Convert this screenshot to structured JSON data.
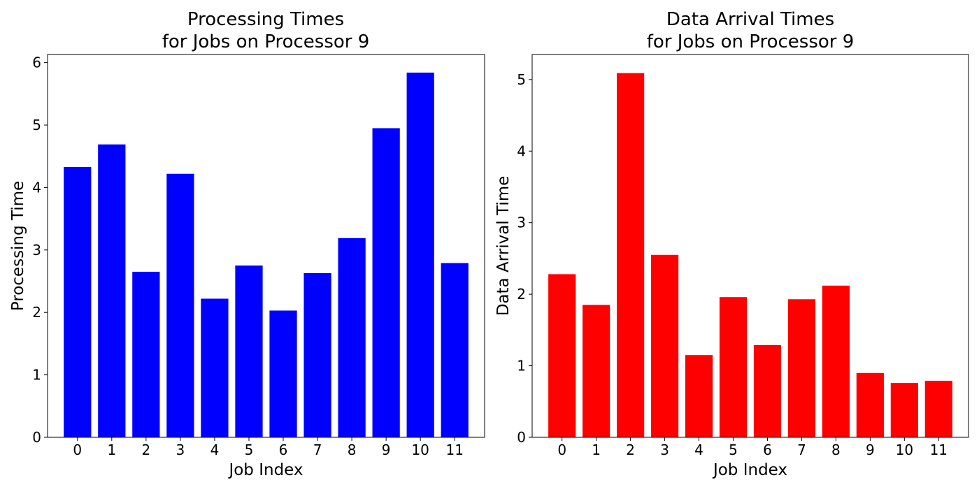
{
  "chart_data": [
    {
      "type": "bar",
      "title": [
        "Processing Times",
        "for Jobs on Processor 9"
      ],
      "xlabel": "Job Index",
      "ylabel": "Processing Time",
      "categories": [
        "0",
        "1",
        "2",
        "3",
        "4",
        "5",
        "6",
        "7",
        "8",
        "9",
        "10",
        "11"
      ],
      "values": [
        4.33,
        4.69,
        2.65,
        4.22,
        2.22,
        2.75,
        2.03,
        2.63,
        3.19,
        4.95,
        5.84,
        2.79
      ],
      "ylim": [
        0,
        6.13
      ],
      "yticks": [
        0,
        1,
        2,
        3,
        4,
        5,
        6
      ],
      "color": "#0000ff",
      "grid": false
    },
    {
      "type": "bar",
      "title": [
        "Data Arrival Times",
        "for Jobs on Processor 9"
      ],
      "xlabel": "Job Index",
      "ylabel": "Data Arrival Time",
      "categories": [
        "0",
        "1",
        "2",
        "3",
        "4",
        "5",
        "6",
        "7",
        "8",
        "9",
        "10",
        "11"
      ],
      "values": [
        2.28,
        1.85,
        5.09,
        2.55,
        1.15,
        1.96,
        1.29,
        1.93,
        2.12,
        0.9,
        0.76,
        0.79
      ],
      "ylim": [
        0,
        5.35
      ],
      "yticks": [
        0,
        1,
        2,
        3,
        4,
        5
      ],
      "color": "#ff0000",
      "grid": false
    }
  ]
}
